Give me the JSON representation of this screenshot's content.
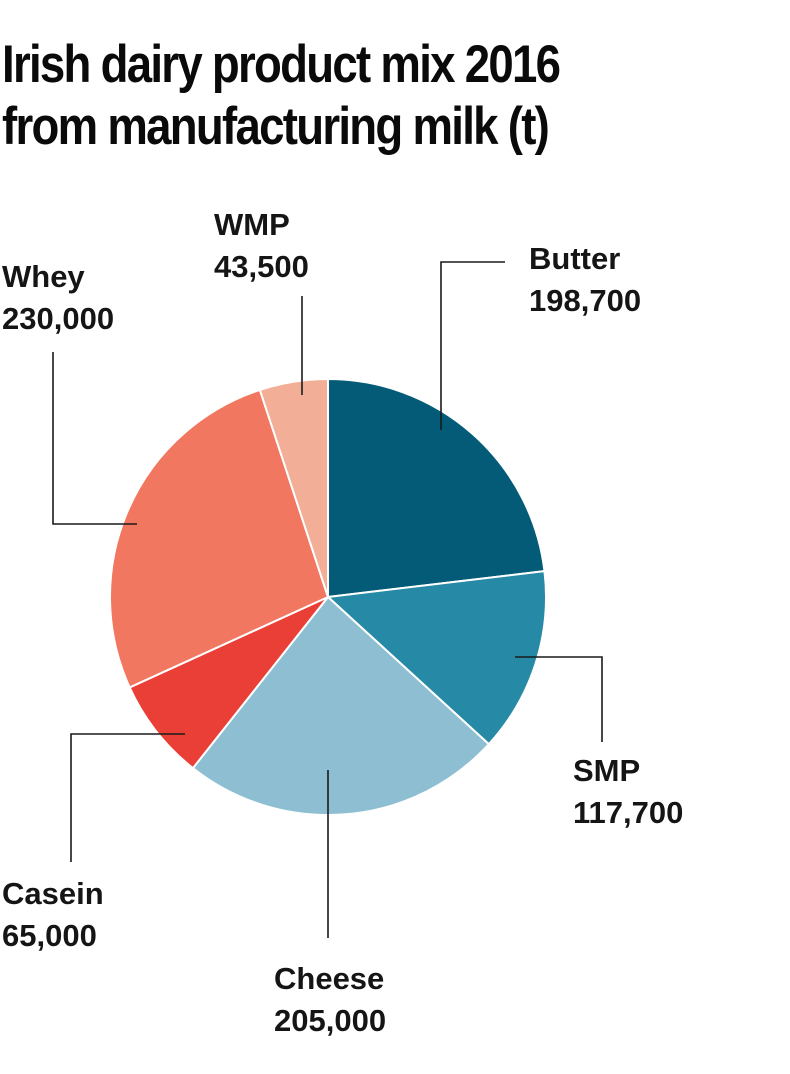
{
  "chart_data": {
    "type": "pie",
    "title_lines": [
      "Irish dairy product mix 2016",
      "from manufacturing milk (t)"
    ],
    "start": "12 o'clock, clockwise",
    "slices": [
      {
        "name": "Butter",
        "value": 198700,
        "value_label": "198,700",
        "color": "#035b77"
      },
      {
        "name": "SMP",
        "value": 117700,
        "value_label": "117,700",
        "color": "#2689a6"
      },
      {
        "name": "Cheese",
        "value": 205000,
        "value_label": "205,000",
        "color": "#8dbed1"
      },
      {
        "name": "Casein",
        "value": 65000,
        "value_label": "65,000",
        "color": "#ea3f37"
      },
      {
        "name": "Whey",
        "value": 230000,
        "value_label": "230,000",
        "color": "#f27760"
      },
      {
        "name": "WMP",
        "value": 43500,
        "value_label": "43,500",
        "color": "#f2ae97"
      }
    ]
  }
}
